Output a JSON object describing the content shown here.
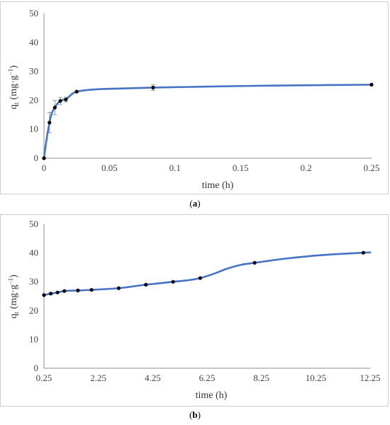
{
  "chart_data": [
    {
      "type": "line",
      "panel": "a",
      "xlabel": "time (h)",
      "ylabel": "q",
      "ylabel_sub": "t",
      "ylabel_units": "(mg·g",
      "ylabel_sup": "−1",
      "ylabel_close": ")",
      "xlim": [
        0,
        0.25
      ],
      "ylim": [
        0,
        50
      ],
      "xticks": [
        0,
        0.05,
        0.1,
        0.15,
        0.2,
        0.25
      ],
      "xtick_labels": [
        "0",
        "0.05",
        "0.1",
        "0.15",
        "0.2",
        "0.25"
      ],
      "yticks": [
        0,
        10,
        20,
        30,
        40,
        50
      ],
      "ytick_labels": [
        "0",
        "10",
        "20",
        "30",
        "40",
        "50"
      ],
      "caption_open": "(",
      "caption_letter": "a",
      "caption_close": ")",
      "series": [
        {
          "x": [
            0,
            0.0042,
            0.0083,
            0.0125,
            0.0167,
            0.025,
            0.0833,
            0.25
          ],
          "y": [
            0,
            12.3,
            17.5,
            19.8,
            20.3,
            23.0,
            24.4,
            25.4
          ],
          "err": [
            0,
            3.5,
            2.5,
            1.2,
            0.8,
            0,
            1.0,
            0
          ]
        }
      ],
      "curve": {
        "x": [
          0,
          0.002,
          0.0042,
          0.006,
          0.0083,
          0.0105,
          0.0125,
          0.0145,
          0.0167,
          0.019,
          0.022,
          0.025,
          0.03,
          0.04,
          0.06,
          0.0833,
          0.12,
          0.16,
          0.2,
          0.25
        ],
        "y": [
          0,
          6.5,
          12.3,
          15.6,
          17.5,
          19.0,
          19.8,
          20.2,
          20.3,
          21.2,
          22.4,
          23.0,
          23.4,
          23.8,
          24.1,
          24.4,
          24.7,
          25.0,
          25.2,
          25.4
        ]
      },
      "grid": false,
      "color": "#4472c4"
    },
    {
      "type": "line",
      "panel": "b",
      "xlabel": "time (h)",
      "ylabel": "q",
      "ylabel_sub": "t",
      "ylabel_units": "(mg·g",
      "ylabel_sup": "−1",
      "ylabel_close": ")",
      "xlim": [
        0.25,
        12.25
      ],
      "ylim": [
        0,
        50
      ],
      "xticks": [
        0.25,
        2.25,
        4.25,
        6.25,
        8.25,
        10.25,
        12.25
      ],
      "xtick_labels": [
        "0.25",
        "2.25",
        "4.25",
        "6.25",
        "8.25",
        "10.25",
        "12.25"
      ],
      "yticks": [
        0,
        10,
        20,
        30,
        40,
        50
      ],
      "ytick_labels": [
        "0",
        "10",
        "20",
        "30",
        "40",
        "50"
      ],
      "caption_open": "(",
      "caption_letter": "b",
      "caption_close": ")",
      "series": [
        {
          "x": [
            0.25,
            0.5,
            0.75,
            1.0,
            1.5,
            2.0,
            3.0,
            4.0,
            5.0,
            6.0,
            8.0,
            12.0
          ],
          "y": [
            25.4,
            25.9,
            26.3,
            26.8,
            27.0,
            27.2,
            27.8,
            29.0,
            30.0,
            31.3,
            36.6,
            40.1
          ],
          "err": [
            0,
            0,
            0,
            0,
            0,
            0,
            0,
            0,
            0,
            0,
            0,
            0
          ]
        }
      ],
      "curve": {
        "x": [
          0.25,
          0.5,
          0.75,
          1.0,
          1.5,
          2.0,
          3.0,
          4.0,
          5.0,
          5.6,
          6.0,
          6.5,
          7.0,
          7.5,
          8.0,
          9.0,
          10.0,
          11.0,
          12.0,
          12.25
        ],
        "y": [
          25.4,
          25.9,
          26.3,
          26.8,
          27.0,
          27.2,
          27.8,
          29.0,
          30.0,
          30.6,
          31.3,
          32.8,
          34.6,
          35.9,
          36.6,
          37.9,
          38.9,
          39.6,
          40.1,
          40.2
        ]
      },
      "grid": false,
      "color": "#4472c4"
    }
  ]
}
